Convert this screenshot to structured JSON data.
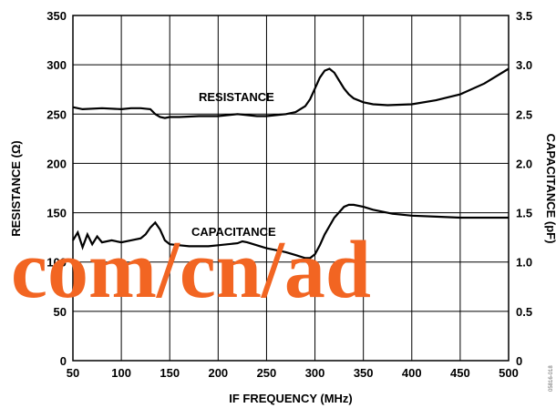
{
  "chart_data": {
    "type": "line",
    "title": "",
    "xlabel": "IF FREQUENCY (MHz)",
    "ylabel_left": "RESISTANCE (Ω)",
    "ylabel_right": "CAPACITANCE (pF)",
    "xlim": [
      50,
      500
    ],
    "ylim_left": [
      0,
      350
    ],
    "ylim_right": [
      0,
      3.5
    ],
    "x_ticks": [
      50,
      100,
      150,
      200,
      250,
      300,
      350,
      400,
      450,
      500
    ],
    "y_ticks_left": [
      0,
      50,
      100,
      150,
      200,
      250,
      300,
      350
    ],
    "y_ticks_right": [
      "0",
      "0.5",
      "1.0",
      "1.5",
      "2.0",
      "2.5",
      "3.0",
      "3.5"
    ],
    "grid": true,
    "series": [
      {
        "name": "RESISTANCE",
        "axis": "left",
        "x": [
          50,
          60,
          80,
          100,
          110,
          120,
          130,
          135,
          140,
          145,
          150,
          160,
          180,
          200,
          210,
          220,
          230,
          240,
          250,
          260,
          270,
          280,
          290,
          295,
          300,
          305,
          310,
          315,
          320,
          325,
          330,
          335,
          340,
          350,
          360,
          375,
          400,
          425,
          450,
          475,
          500
        ],
        "y": [
          257,
          255,
          256,
          255,
          256,
          256,
          255,
          250,
          247,
          246,
          247,
          247,
          248,
          248,
          249,
          250,
          249,
          248,
          248,
          249,
          250,
          252,
          258,
          265,
          276,
          287,
          294,
          296,
          292,
          284,
          276,
          270,
          266,
          262,
          260,
          259,
          260,
          264,
          270,
          281,
          296
        ]
      },
      {
        "name": "CAPACITANCE",
        "axis": "right",
        "x": [
          50,
          55,
          60,
          65,
          70,
          75,
          80,
          90,
          100,
          110,
          120,
          125,
          130,
          135,
          140,
          145,
          150,
          160,
          170,
          180,
          190,
          200,
          210,
          220,
          225,
          230,
          240,
          250,
          260,
          270,
          280,
          290,
          295,
          300,
          305,
          310,
          320,
          330,
          335,
          340,
          350,
          360,
          380,
          400,
          425,
          450,
          475,
          500
        ],
        "y": [
          1.22,
          1.3,
          1.15,
          1.28,
          1.18,
          1.26,
          1.2,
          1.22,
          1.2,
          1.22,
          1.24,
          1.28,
          1.35,
          1.4,
          1.33,
          1.22,
          1.18,
          1.17,
          1.16,
          1.16,
          1.16,
          1.17,
          1.18,
          1.19,
          1.21,
          1.2,
          1.17,
          1.14,
          1.12,
          1.1,
          1.07,
          1.04,
          1.04,
          1.08,
          1.17,
          1.28,
          1.45,
          1.56,
          1.58,
          1.58,
          1.56,
          1.53,
          1.49,
          1.47,
          1.46,
          1.45,
          1.45,
          1.45
        ]
      }
    ],
    "annotations": [
      "RESISTANCE",
      "CAPACITANCE"
    ]
  },
  "watermark": "com/cn/ad",
  "figure_code": "05816-018"
}
